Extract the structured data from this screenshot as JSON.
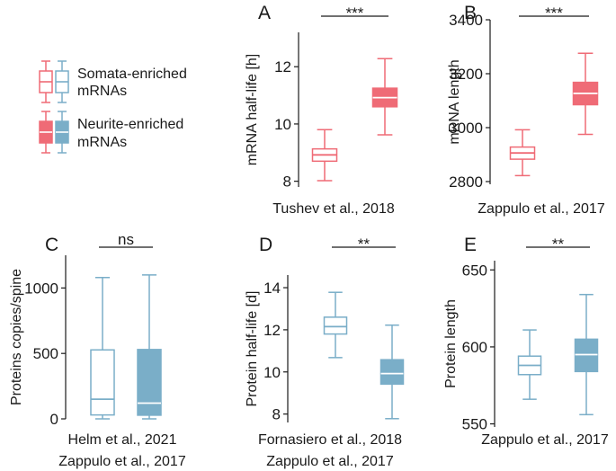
{
  "colors": {
    "somata_red": "#ef6b76",
    "neurite_red": "#ef6b76",
    "somata_blue": "#7aaec8",
    "neurite_blue": "#7aaec8",
    "axis": "#1a1a1a"
  },
  "legend": {
    "somata_label_1": "Somata-enriched",
    "somata_label_2": "mRNAs",
    "neurite_label_1": "Neurite-enriched",
    "neurite_label_2": "mRNAs"
  },
  "chart_data": [
    {
      "id": "A",
      "type": "box",
      "panel_label": "A",
      "ylabel": "mRNA half-life [h]",
      "source": [
        "Tushev et al., 2018"
      ],
      "significance": "***",
      "ylim": [
        7.8,
        13.2
      ],
      "yticks": [
        8,
        10,
        12
      ],
      "color": "red",
      "boxes": [
        {
          "group": "somata",
          "filled": false,
          "whisker_low": 8.02,
          "q1": 8.7,
          "median": 8.92,
          "q3": 9.13,
          "whisker_high": 9.8
        },
        {
          "group": "neurite",
          "filled": true,
          "whisker_low": 9.62,
          "q1": 10.6,
          "median": 10.92,
          "q3": 11.25,
          "whisker_high": 12.28
        }
      ]
    },
    {
      "id": "B",
      "type": "box",
      "panel_label": "B",
      "ylabel": "mRNA length",
      "source": [
        "Zappulo et al., 2017"
      ],
      "significance": "***",
      "ylim": [
        2790,
        3400
      ],
      "yticks": [
        2800,
        3000,
        3200,
        3400
      ],
      "color": "red",
      "boxes": [
        {
          "group": "somata",
          "filled": false,
          "whisker_low": 2822,
          "q1": 2883,
          "median": 2906,
          "q3": 2928,
          "whisker_high": 2992
        },
        {
          "group": "neurite",
          "filled": true,
          "whisker_low": 2975,
          "q1": 3085,
          "median": 3127,
          "q3": 3168,
          "whisker_high": 3276
        }
      ]
    },
    {
      "id": "C",
      "type": "box",
      "panel_label": "C",
      "ylabel": "Proteins copies/spine",
      "source": [
        "Helm et al., 2021",
        "Zappulo et al., 2017"
      ],
      "significance": "ns",
      "ylim": [
        0,
        1250
      ],
      "yticks": [
        0,
        500,
        1000
      ],
      "color": "blue",
      "boxes": [
        {
          "group": "somata",
          "filled": false,
          "whisker_low": 0,
          "q1": 30,
          "median": 150,
          "q3": 527,
          "whisker_high": 1080
        },
        {
          "group": "neurite",
          "filled": true,
          "whisker_low": 0,
          "q1": 28,
          "median": 120,
          "q3": 530,
          "whisker_high": 1100
        }
      ]
    },
    {
      "id": "D",
      "type": "box",
      "panel_label": "D",
      "ylabel": "Protein half-life [d]",
      "source": [
        "Fornasiero et al., 2018",
        "Zappulo et al., 2017"
      ],
      "significance": "**",
      "ylim": [
        7.6,
        14.6
      ],
      "yticks": [
        8,
        10,
        12,
        14
      ],
      "color": "blue",
      "boxes": [
        {
          "group": "somata",
          "filled": false,
          "whisker_low": 10.68,
          "q1": 11.8,
          "median": 12.15,
          "q3": 12.6,
          "whisker_high": 13.78
        },
        {
          "group": "neurite",
          "filled": true,
          "whisker_low": 7.78,
          "q1": 9.42,
          "median": 9.92,
          "q3": 10.58,
          "whisker_high": 12.22
        }
      ]
    },
    {
      "id": "E",
      "type": "box",
      "panel_label": "E",
      "ylabel": "Protein length",
      "source": [
        "Zappulo et al., 2017"
      ],
      "significance": "**",
      "ylim": [
        548,
        656
      ],
      "yticks": [
        550,
        600,
        650
      ],
      "color": "blue",
      "boxes": [
        {
          "group": "somata",
          "filled": false,
          "whisker_low": 566,
          "q1": 582,
          "median": 588,
          "q3": 594,
          "whisker_high": 611
        },
        {
          "group": "neurite",
          "filled": true,
          "whisker_low": 556,
          "q1": 584,
          "median": 595,
          "q3": 605,
          "whisker_high": 634
        }
      ]
    }
  ]
}
